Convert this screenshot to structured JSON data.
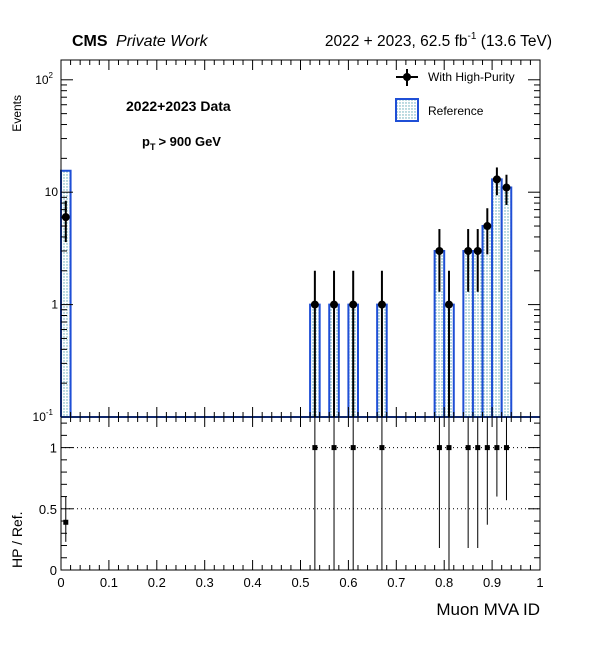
{
  "header": {
    "cms": "CMS",
    "private": "Private Work",
    "lumi_prefix": "2022 + 2023, 62.5 fb",
    "lumi_sup": "-1",
    "lumi_suffix": " (13.6 TeV)"
  },
  "annotations": {
    "data_label": "2022+2023 Data",
    "pt_p": "p",
    "pt_sub": "T",
    "pt_cut": "> 900 GeV"
  },
  "legend": {
    "hp_label": "With High-Purity",
    "ref_label": "Reference"
  },
  "colors": {
    "reference_line": "#1f4fd6",
    "reference_fill": "#9fd0d8",
    "data": "#000000"
  },
  "chart_data": [
    {
      "type": "bar",
      "panel": "top",
      "ylabel": "Events",
      "yscale": "log",
      "ylim": [
        0.1,
        150
      ],
      "xlim": [
        0,
        1
      ],
      "yticks": [
        {
          "v": 0.1,
          "base": "10",
          "exp": "-1"
        },
        {
          "v": 1,
          "text": "1"
        },
        {
          "v": 10,
          "text": "10"
        },
        {
          "v": 100,
          "base": "10",
          "exp": "2"
        }
      ],
      "bin_width": 0.02,
      "series": [
        {
          "name": "Reference",
          "style": "hatched-histogram",
          "bins": [
            {
              "x": 0.01,
              "y": 15.5
            },
            {
              "x": 0.53,
              "y": 1
            },
            {
              "x": 0.57,
              "y": 1
            },
            {
              "x": 0.61,
              "y": 1
            },
            {
              "x": 0.67,
              "y": 1
            },
            {
              "x": 0.79,
              "y": 3
            },
            {
              "x": 0.81,
              "y": 1
            },
            {
              "x": 0.85,
              "y": 3
            },
            {
              "x": 0.87,
              "y": 3
            },
            {
              "x": 0.89,
              "y": 5
            },
            {
              "x": 0.91,
              "y": 13
            },
            {
              "x": 0.93,
              "y": 11
            }
          ]
        },
        {
          "name": "With High-Purity",
          "style": "points-with-errors",
          "points": [
            {
              "x": 0.01,
              "y": 6,
              "lo": 3.6,
              "hi": 8.4
            },
            {
              "x": 0.53,
              "y": 1,
              "lo": 0.1,
              "hi": 2
            },
            {
              "x": 0.57,
              "y": 1,
              "lo": 0.1,
              "hi": 2
            },
            {
              "x": 0.61,
              "y": 1,
              "lo": 0.1,
              "hi": 2
            },
            {
              "x": 0.67,
              "y": 1,
              "lo": 0.1,
              "hi": 2
            },
            {
              "x": 0.79,
              "y": 3,
              "lo": 1.3,
              "hi": 4.7
            },
            {
              "x": 0.81,
              "y": 1,
              "lo": 0.1,
              "hi": 2
            },
            {
              "x": 0.85,
              "y": 3,
              "lo": 1.3,
              "hi": 4.7
            },
            {
              "x": 0.87,
              "y": 3,
              "lo": 1.3,
              "hi": 4.7
            },
            {
              "x": 0.89,
              "y": 5,
              "lo": 2.8,
              "hi": 7.2
            },
            {
              "x": 0.91,
              "y": 13,
              "lo": 9.4,
              "hi": 16.6
            },
            {
              "x": 0.93,
              "y": 11,
              "lo": 7.7,
              "hi": 14.3
            }
          ]
        }
      ]
    },
    {
      "type": "scatter",
      "panel": "ratio",
      "xlabel": "Muon MVA ID",
      "ylabel": "HP / Ref.",
      "ylim": [
        0,
        1.25
      ],
      "xlim": [
        0,
        1
      ],
      "yticks": [
        {
          "v": 0,
          "text": "0"
        },
        {
          "v": 0.5,
          "text": "0.5"
        },
        {
          "v": 1,
          "text": "1"
        }
      ],
      "xticks": [
        "0",
        "0.1",
        "0.2",
        "0.3",
        "0.4",
        "0.5",
        "0.6",
        "0.7",
        "0.8",
        "0.9",
        "1"
      ],
      "reference_lines": [
        0.5,
        1.0
      ],
      "points": [
        {
          "x": 0.01,
          "y": 0.39,
          "lo": 0.23,
          "hi": 0.6
        },
        {
          "x": 0.53,
          "y": 1,
          "lo": 0,
          "hi": 1.25
        },
        {
          "x": 0.57,
          "y": 1,
          "lo": 0,
          "hi": 1.25
        },
        {
          "x": 0.61,
          "y": 1,
          "lo": 0,
          "hi": 1.25
        },
        {
          "x": 0.67,
          "y": 1,
          "lo": 0,
          "hi": 1.25
        },
        {
          "x": 0.79,
          "y": 1,
          "lo": 0.18,
          "hi": 1.25
        },
        {
          "x": 0.81,
          "y": 1,
          "lo": 0,
          "hi": 1.25
        },
        {
          "x": 0.85,
          "y": 1,
          "lo": 0.18,
          "hi": 1.25
        },
        {
          "x": 0.87,
          "y": 1,
          "lo": 0.18,
          "hi": 1.25
        },
        {
          "x": 0.89,
          "y": 1,
          "lo": 0.37,
          "hi": 1.25
        },
        {
          "x": 0.91,
          "y": 1,
          "lo": 0.6,
          "hi": 1.25
        },
        {
          "x": 0.93,
          "y": 1,
          "lo": 0.57,
          "hi": 1.25
        }
      ]
    }
  ]
}
